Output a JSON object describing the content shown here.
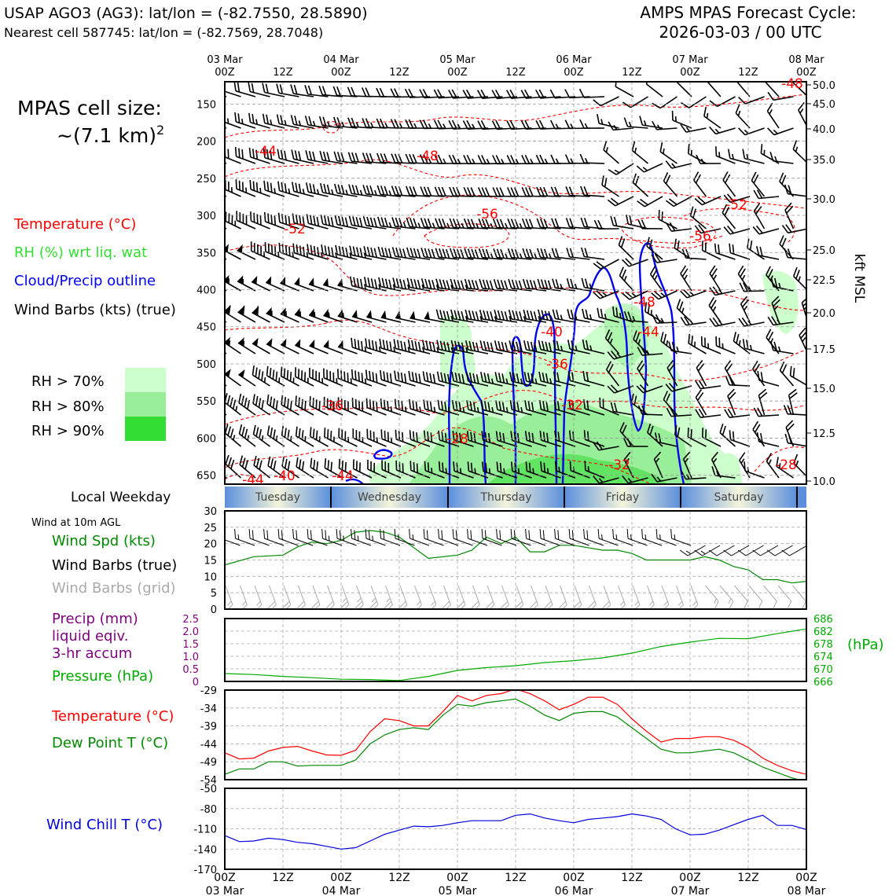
{
  "header": {
    "station": "USAP AGO3 (AG3): lat/lon = (-82.7550, 28.5890)",
    "nearest": "Nearest cell 587745: lat/lon = (-82.7569, 28.7048)",
    "cycle_title": "AMPS MPAS Forecast Cycle:",
    "cycle_value": "2026-03-03 / 00 UTC"
  },
  "legend_upper": {
    "cell_size_line1": "MPAS cell size:",
    "cell_size_line2": "~(7.1 km)",
    "cell_size_sup": "2",
    "temperature": "Temperature (°C)",
    "rh": "RH (%) wrt liq. wat",
    "cloud": "Cloud/Precip outline",
    "barbs": "Wind Barbs (kts) (true)",
    "rh70": "RH > 70%",
    "rh80": "RH > 80%",
    "rh90": "RH > 90%",
    "colors": {
      "temperature": "#ff0000",
      "rh": "#33dd33",
      "cloud": "#0000ff",
      "rh70": "#ccffcc",
      "rh80": "#99ee99",
      "rh90": "#33dd33"
    }
  },
  "time_axis": {
    "ticks": [
      "00Z",
      "12Z",
      "00Z",
      "12Z",
      "00Z",
      "12Z",
      "00Z",
      "12Z",
      "00Z",
      "12Z",
      "00Z"
    ],
    "dates": [
      "03 Mar",
      "04 Mar",
      "05 Mar",
      "06 Mar",
      "07 Mar",
      "08 Mar"
    ]
  },
  "weekday": {
    "label": "Local Weekday",
    "days": [
      "Tuesday",
      "Wednesday",
      "Thursday",
      "Friday",
      "Saturday"
    ]
  },
  "chart_data": [
    {
      "type": "heatmap",
      "name": "time-height cross section",
      "yaxis_left": {
        "label": "",
        "ticks": [
          150,
          200,
          250,
          300,
          350,
          400,
          450,
          500,
          550,
          600,
          650
        ]
      },
      "yaxis_right": {
        "label": "kft MSL",
        "ticks": [
          "50.0",
          "45.0",
          "40.0",
          "35.0",
          "30.0",
          "25.0",
          "22.5",
          "20.0",
          "17.5",
          "15.0",
          "12.5",
          "10.0"
        ]
      },
      "temperature_labels": [
        "-48",
        "-44",
        "-48",
        "-56",
        "-52",
        "-52",
        "-56",
        "-48",
        "-40",
        "-44",
        "-36",
        "-36",
        "-32",
        "-28",
        "-32",
        "-28",
        "-44",
        "-40",
        "-44"
      ]
    },
    {
      "type": "line",
      "name": "wind",
      "title": "Wind at 10m AGL",
      "legend": [
        "Wind Spd (kts)",
        "Wind Barbs (true)",
        "Wind Barbs (grid)"
      ],
      "ylim": [
        0,
        30
      ],
      "yticks": [
        "30",
        "25",
        "20",
        "15",
        "10",
        "5",
        "0"
      ],
      "hours": [
        0,
        6,
        12,
        15,
        18,
        21,
        24,
        27,
        30,
        33,
        36,
        42,
        48,
        51,
        54,
        57,
        60,
        63,
        66,
        69,
        72,
        78,
        81,
        84,
        87,
        90,
        96,
        99,
        102,
        105,
        108,
        111,
        114,
        117,
        120
      ],
      "series": [
        {
          "name": "Wind Spd (kts)",
          "color": "#008800",
          "values": [
            13.5,
            16,
            16.5,
            19,
            20.5,
            20,
            21,
            23.5,
            24,
            23.5,
            22,
            15.5,
            16.5,
            18,
            22,
            20,
            22,
            17.5,
            17.5,
            19.5,
            19.5,
            18,
            18,
            17,
            15,
            15,
            15,
            16,
            15,
            13,
            12,
            9,
            9,
            8,
            8.5
          ]
        }
      ]
    },
    {
      "type": "line",
      "name": "precip and pressure",
      "legend": [
        "Precip (mm)",
        "liquid eqiv.",
        "3-hr accum",
        "Pressure (hPa)"
      ],
      "ylim_left": [
        0,
        2.5
      ],
      "yticks_left": [
        "2.5",
        "2.0",
        "1.5",
        "1.0",
        "0.5",
        "0"
      ],
      "ylim_right": [
        666,
        686
      ],
      "yticks_right": [
        "686",
        "682",
        "678",
        "674",
        "670",
        "666"
      ],
      "right_unit": "(hPa)",
      "hours": [
        0,
        6,
        12,
        18,
        24,
        30,
        36,
        42,
        48,
        54,
        60,
        66,
        72,
        78,
        84,
        90,
        96,
        102,
        108,
        114,
        120
      ],
      "series": [
        {
          "name": "Pressure (hPa)",
          "color": "#00aa00",
          "values": [
            668.5,
            668.2,
            667.6,
            667.2,
            666.7,
            666.6,
            666.3,
            667.6,
            669.5,
            670.4,
            671.0,
            672.0,
            672.6,
            673.5,
            675.0,
            677.1,
            678.5,
            679.7,
            679.6,
            681.2,
            682.7
          ]
        },
        {
          "name": "Precip (mm)",
          "color": "#7d007d",
          "values": [
            0,
            0,
            0,
            0,
            0,
            0,
            0,
            0,
            0,
            0,
            0,
            0,
            0,
            0.03,
            0,
            0,
            0,
            0,
            0,
            0,
            0
          ]
        }
      ]
    },
    {
      "type": "line",
      "name": "temperature and dew point",
      "legend": [
        "Temperature (°C)",
        "Dew Point T (°C)"
      ],
      "ylim": [
        -54,
        -29
      ],
      "yticks": [
        "-29",
        "-34",
        "-39",
        "-44",
        "-49",
        "-54"
      ],
      "hours": [
        0,
        3,
        6,
        9,
        12,
        15,
        18,
        21,
        24,
        27,
        30,
        33,
        36,
        39,
        42,
        45,
        48,
        51,
        54,
        57,
        60,
        63,
        66,
        69,
        72,
        75,
        78,
        81,
        84,
        87,
        90,
        93,
        96,
        99,
        102,
        105,
        108,
        111,
        114,
        117,
        120
      ],
      "series": [
        {
          "name": "Temperature (°C)",
          "color": "#ff0000",
          "values": [
            -46.5,
            -48.2,
            -48,
            -46,
            -45,
            -44.7,
            -46,
            -47.1,
            -47.2,
            -45.8,
            -40.6,
            -37,
            -37.5,
            -39,
            -39,
            -35,
            -30.5,
            -32,
            -30.5,
            -30,
            -28.7,
            -30,
            -32,
            -34.5,
            -33,
            -31,
            -31,
            -33,
            -37,
            -40.5,
            -43.5,
            -42.5,
            -42.5,
            -42,
            -42,
            -43,
            -45,
            -48,
            -50,
            -51.5,
            -52.5
          ]
        },
        {
          "name": "Dew Point T (°C)",
          "color": "#008800",
          "values": [
            -52.5,
            -51,
            -51,
            -49,
            -49,
            -50.2,
            -50,
            -50,
            -50,
            -48.5,
            -44,
            -41.5,
            -40,
            -39.5,
            -40,
            -36,
            -33,
            -33.5,
            -32.5,
            -32,
            -31.5,
            -33.5,
            -36,
            -37.5,
            -35.5,
            -35,
            -35,
            -36.5,
            -39.5,
            -42.5,
            -45.5,
            -46.5,
            -46.5,
            -46,
            -45.5,
            -46.5,
            -48.5,
            -50.5,
            -52,
            -53.5,
            -54.5
          ]
        }
      ]
    },
    {
      "type": "line",
      "name": "wind chill",
      "legend": [
        "Wind Chill T (°C)"
      ],
      "ylim": [
        -170,
        -50
      ],
      "yticks": [
        "-50",
        "-80",
        "-110",
        "-140",
        "-170"
      ],
      "hours": [
        0,
        3,
        6,
        9,
        12,
        15,
        18,
        21,
        24,
        27,
        30,
        33,
        36,
        39,
        42,
        45,
        48,
        51,
        54,
        57,
        60,
        63,
        66,
        69,
        72,
        75,
        78,
        81,
        84,
        87,
        90,
        93,
        96,
        99,
        102,
        105,
        108,
        111,
        114,
        117,
        120
      ],
      "series": [
        {
          "name": "Wind Chill T (°C)",
          "color": "#0000dd",
          "values": [
            -120,
            -129,
            -128,
            -124,
            -126,
            -130,
            -132,
            -136,
            -140,
            -138,
            -128,
            -118,
            -112,
            -106,
            -107,
            -105,
            -101,
            -98,
            -98,
            -98,
            -90,
            -88,
            -94,
            -98,
            -101,
            -96,
            -94,
            -92,
            -88,
            -91,
            -96,
            -110,
            -119,
            -118,
            -112,
            -104,
            -96,
            -90,
            -105,
            -105,
            -111
          ]
        }
      ]
    }
  ]
}
